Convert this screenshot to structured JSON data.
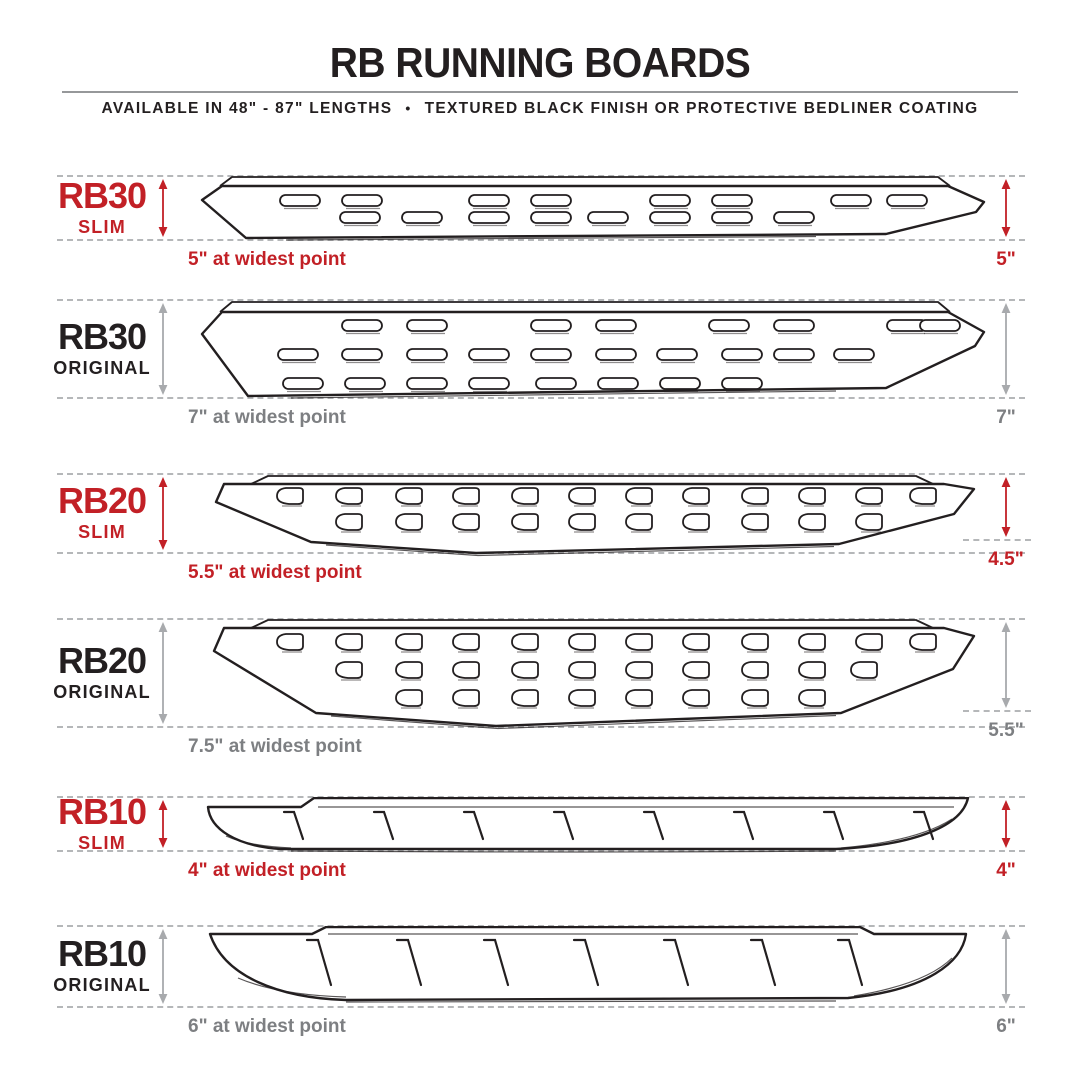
{
  "header": {
    "title": "RB RUNNING BOARDS",
    "subtitle_left": "AVAILABLE IN 48\" - 87\" LENGTHS",
    "separator": "•",
    "subtitle_right": "TEXTURED BLACK FINISH OR PROTECTIVE BEDLINER COATING"
  },
  "colors": {
    "accent_red": "#c22026",
    "ink": "#231f20",
    "arrow_gray": "#a8aaad",
    "gray_text": "#7d7f82"
  },
  "sections": [
    {
      "model": "RB30",
      "variant": "SLIM",
      "color_theme": "red",
      "widest_label": "5\" at widest point",
      "right_dim": "5\""
    },
    {
      "model": "RB30",
      "variant": "ORIGINAL",
      "color_theme": "gray",
      "widest_label": "7\" at widest point",
      "right_dim": "7\""
    },
    {
      "model": "RB20",
      "variant": "SLIM",
      "color_theme": "red",
      "widest_label": "5.5\" at widest point",
      "right_dim": "4.5\""
    },
    {
      "model": "RB20",
      "variant": "ORIGINAL",
      "color_theme": "gray",
      "widest_label": "7.5\" at widest point",
      "right_dim": "5.5\""
    },
    {
      "model": "RB10",
      "variant": "SLIM",
      "color_theme": "red",
      "widest_label": "4\" at widest point",
      "right_dim": "4\""
    },
    {
      "model": "RB10",
      "variant": "ORIGINAL",
      "color_theme": "gray",
      "widest_label": "6\" at widest point",
      "right_dim": "6\""
    }
  ]
}
